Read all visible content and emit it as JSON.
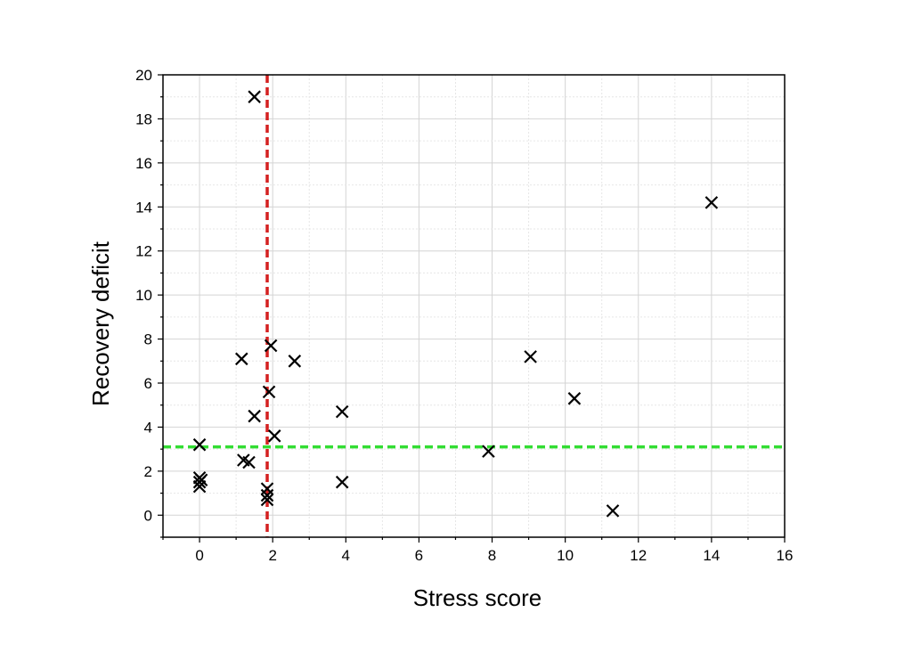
{
  "chart_data": {
    "type": "scatter",
    "title": "",
    "xlabel": "Stress score",
    "ylabel": "Recovery deficit",
    "xlim": [
      -1,
      16
    ],
    "ylim": [
      -1,
      20
    ],
    "xticks": [
      0,
      2,
      4,
      6,
      8,
      10,
      12,
      14,
      16
    ],
    "yticks": [
      0,
      2,
      4,
      6,
      8,
      10,
      12,
      14,
      16,
      18,
      20
    ],
    "grid": true,
    "marker": "x",
    "marker_color": "#000000",
    "series": [
      {
        "points": [
          {
            "x": 0.0,
            "y": 3.2
          },
          {
            "x": 0.0,
            "y": 1.7
          },
          {
            "x": 0.05,
            "y": 1.6
          },
          {
            "x": 0.0,
            "y": 1.5
          },
          {
            "x": 0.0,
            "y": 1.3
          },
          {
            "x": 1.15,
            "y": 7.1
          },
          {
            "x": 1.2,
            "y": 2.5
          },
          {
            "x": 1.35,
            "y": 2.4
          },
          {
            "x": 1.5,
            "y": 4.5
          },
          {
            "x": 1.5,
            "y": 19.0
          },
          {
            "x": 1.85,
            "y": 1.2
          },
          {
            "x": 1.85,
            "y": 0.9
          },
          {
            "x": 1.85,
            "y": 0.7
          },
          {
            "x": 1.9,
            "y": 5.6
          },
          {
            "x": 1.95,
            "y": 7.7
          },
          {
            "x": 2.05,
            "y": 3.6
          },
          {
            "x": 2.6,
            "y": 7.0
          },
          {
            "x": 3.9,
            "y": 4.7
          },
          {
            "x": 3.9,
            "y": 1.5
          },
          {
            "x": 7.9,
            "y": 2.9
          },
          {
            "x": 9.05,
            "y": 7.2
          },
          {
            "x": 10.25,
            "y": 5.3
          },
          {
            "x": 11.3,
            "y": 0.2
          },
          {
            "x": 14.0,
            "y": 14.2
          }
        ]
      }
    ],
    "reference_lines": [
      {
        "orientation": "vertical",
        "value": 1.85,
        "color": "#d42020",
        "style": "dashed"
      },
      {
        "orientation": "horizontal",
        "value": 3.1,
        "color": "#33dd33",
        "style": "dashed"
      }
    ]
  }
}
